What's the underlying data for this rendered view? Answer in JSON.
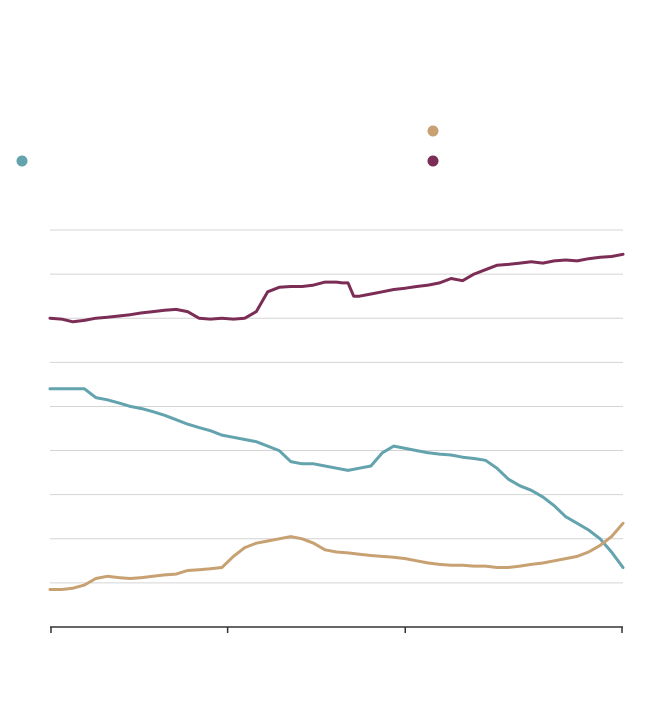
{
  "chart_data": {
    "type": "line",
    "title": "",
    "xlabel": "",
    "ylabel": "",
    "ylim": [
      0,
      9
    ],
    "xlim": [
      0,
      100
    ],
    "grid": true,
    "legend_position": "top",
    "gridlines": [
      1,
      2,
      3,
      4,
      5,
      6,
      7,
      8,
      9
    ],
    "x_ticks": [
      0,
      31,
      62,
      100
    ],
    "series": [
      {
        "color": "#7b2d55",
        "legend_dot": true,
        "x": [
          0,
          2,
          4,
          6,
          8,
          10,
          12,
          14,
          16,
          18,
          20,
          22,
          24,
          26,
          28,
          30,
          32,
          34,
          36,
          38,
          40,
          42,
          44,
          46,
          48,
          50,
          51,
          52,
          53,
          54,
          56,
          58,
          60,
          62,
          64,
          66,
          68,
          70,
          72,
          74,
          76,
          78,
          80,
          82,
          84,
          86,
          88,
          90,
          92,
          94,
          96,
          98,
          100
        ],
        "y": [
          7.0,
          6.98,
          6.92,
          6.95,
          7.0,
          7.02,
          7.05,
          7.08,
          7.12,
          7.15,
          7.18,
          7.2,
          7.15,
          7.0,
          6.98,
          7.0,
          6.98,
          7.0,
          7.15,
          7.6,
          7.7,
          7.72,
          7.72,
          7.75,
          7.82,
          7.82,
          7.8,
          7.8,
          7.5,
          7.5,
          7.55,
          7.6,
          7.65,
          7.68,
          7.72,
          7.75,
          7.8,
          7.9,
          7.85,
          8.0,
          8.1,
          8.2,
          8.22,
          8.25,
          8.28,
          8.25,
          8.3,
          8.32,
          8.3,
          8.35,
          8.38,
          8.4,
          8.45
        ]
      },
      {
        "color": "#62a3ad",
        "legend_dot": true,
        "x": [
          0,
          2,
          4,
          6,
          8,
          10,
          12,
          14,
          16,
          18,
          20,
          22,
          24,
          26,
          28,
          30,
          32,
          34,
          36,
          38,
          40,
          42,
          44,
          46,
          48,
          50,
          52,
          54,
          56,
          58,
          60,
          62,
          64,
          66,
          68,
          70,
          72,
          74,
          76,
          78,
          80,
          82,
          84,
          86,
          88,
          90,
          92,
          94,
          96,
          98,
          100
        ],
        "y": [
          5.4,
          5.4,
          5.4,
          5.4,
          5.2,
          5.15,
          5.08,
          5.0,
          4.95,
          4.88,
          4.8,
          4.7,
          4.6,
          4.52,
          4.45,
          4.35,
          4.3,
          4.25,
          4.2,
          4.1,
          4.0,
          3.75,
          3.7,
          3.7,
          3.65,
          3.6,
          3.55,
          3.6,
          3.65,
          3.95,
          4.1,
          4.05,
          4.0,
          3.95,
          3.92,
          3.9,
          3.85,
          3.82,
          3.78,
          3.6,
          3.35,
          3.2,
          3.1,
          2.95,
          2.75,
          2.5,
          2.35,
          2.2,
          2.0,
          1.7,
          1.35
        ]
      },
      {
        "color": "#c8a172",
        "legend_dot": true,
        "x": [
          0,
          2,
          4,
          6,
          8,
          10,
          12,
          14,
          16,
          18,
          20,
          22,
          24,
          26,
          28,
          30,
          32,
          34,
          36,
          38,
          40,
          42,
          44,
          46,
          48,
          50,
          52,
          54,
          56,
          58,
          60,
          62,
          64,
          66,
          68,
          70,
          72,
          74,
          76,
          78,
          80,
          82,
          84,
          86,
          88,
          90,
          92,
          94,
          96,
          98,
          100
        ],
        "y": [
          0.85,
          0.85,
          0.88,
          0.95,
          1.1,
          1.15,
          1.12,
          1.1,
          1.12,
          1.15,
          1.18,
          1.2,
          1.28,
          1.3,
          1.32,
          1.35,
          1.6,
          1.8,
          1.9,
          1.95,
          2.0,
          2.05,
          2.0,
          1.9,
          1.75,
          1.7,
          1.68,
          1.65,
          1.62,
          1.6,
          1.58,
          1.55,
          1.5,
          1.45,
          1.42,
          1.4,
          1.4,
          1.38,
          1.38,
          1.35,
          1.35,
          1.38,
          1.42,
          1.45,
          1.5,
          1.55,
          1.6,
          1.7,
          1.85,
          2.05,
          2.35
        ]
      }
    ]
  }
}
